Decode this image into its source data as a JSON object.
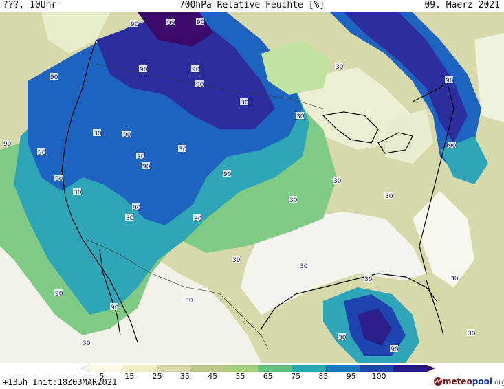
{
  "header": {
    "left": "???, 10Uhr",
    "center": "700hPa Relative Feuchte [%]",
    "right": "09. Maerz 2021"
  },
  "footer": {
    "run_info": "+135h Init:18Z03MAR2021",
    "logo_brand_a": "meteo",
    "logo_brand_b": "pool",
    "logo_tld": ".org"
  },
  "legend": {
    "ticks": [
      "5",
      "15",
      "25",
      "35",
      "45",
      "55",
      "65",
      "75",
      "85",
      "95",
      "100"
    ],
    "colors": [
      "#f4f4f4",
      "#fafae6",
      "#eeeec8",
      "#d6d6a6",
      "#bcc88a",
      "#a6cf7a",
      "#62bf7a",
      "#28a9b2",
      "#1779c0",
      "#1e44b0",
      "#241a8a",
      "#3a0a6a"
    ]
  },
  "map_labels": [
    {
      "id": "label-90-a",
      "text": "90"
    },
    {
      "id": "label-99",
      "text": "99"
    },
    {
      "id": "label-90-b",
      "text": "90"
    },
    {
      "id": "label-90-c",
      "text": "90"
    },
    {
      "id": "label-90-d",
      "text": "90"
    },
    {
      "id": "label-90-e",
      "text": "90"
    },
    {
      "id": "label-30-a",
      "text": "30"
    },
    {
      "id": "label-90-f",
      "text": "90"
    },
    {
      "id": "label-30-b",
      "text": "30"
    },
    {
      "id": "label-30-c",
      "text": "30"
    },
    {
      "id": "label-90-g",
      "text": "90"
    },
    {
      "id": "label-30-d",
      "text": "30"
    },
    {
      "id": "label-90-h",
      "text": "90"
    },
    {
      "id": "label-90-i",
      "text": "90"
    },
    {
      "id": "label-30-e",
      "text": "30"
    },
    {
      "id": "label-90-j",
      "text": "90"
    },
    {
      "id": "label-30-f",
      "text": "30"
    },
    {
      "id": "label-90-k",
      "text": "90"
    },
    {
      "id": "label-90-l",
      "text": "90"
    },
    {
      "id": "label-90-m",
      "text": "90"
    },
    {
      "id": "label-90-n",
      "text": "90"
    },
    {
      "id": "label-30-g",
      "text": "30"
    },
    {
      "id": "label-30-h",
      "text": "30"
    },
    {
      "id": "label-30-i",
      "text": "30"
    },
    {
      "id": "label-90-o",
      "text": "90"
    },
    {
      "id": "label-30-j",
      "text": "30"
    },
    {
      "id": "label-30-k",
      "text": "30"
    },
    {
      "id": "label-30-l",
      "text": "30"
    },
    {
      "id": "label-30-m",
      "text": "30"
    },
    {
      "id": "label-30-n",
      "text": "30"
    },
    {
      "id": "label-90-p",
      "text": "90"
    },
    {
      "id": "label-90-q",
      "text": "90"
    },
    {
      "id": "label-30-o",
      "text": "30"
    },
    {
      "id": "label-30-p",
      "text": "30"
    },
    {
      "id": "label-30-q",
      "text": "30"
    },
    {
      "id": "label-30-r",
      "text": "30"
    },
    {
      "id": "label-30-s",
      "text": "30"
    },
    {
      "id": "label-90-r",
      "text": "90"
    },
    {
      "id": "label-30-t",
      "text": "30"
    }
  ]
}
